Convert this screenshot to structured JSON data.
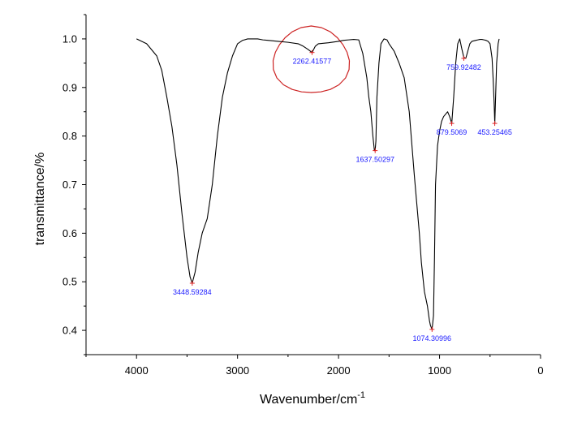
{
  "chart_data": {
    "type": "line",
    "title": "",
    "xlabel": "Wavenumber/cm",
    "xlabel_superscript": "-1",
    "ylabel": "transmittance/%",
    "xlim": [
      4500,
      0
    ],
    "ylim": [
      0.35,
      1.05
    ],
    "x_ticks": [
      "4000",
      "3000",
      "2000",
      "1000",
      "0"
    ],
    "y_ticks": [
      "0.4",
      "0.5",
      "0.6",
      "0.7",
      "0.8",
      "0.9",
      "1.0"
    ],
    "grid": false,
    "series": [
      {
        "color": "#000000",
        "x": [
          4000,
          3900,
          3800,
          3750,
          3700,
          3650,
          3600,
          3550,
          3500,
          3470,
          3449,
          3420,
          3390,
          3350,
          3300,
          3250,
          3200,
          3150,
          3100,
          3050,
          3000,
          2950,
          2900,
          2850,
          2800,
          2750,
          2700,
          2600,
          2500,
          2400,
          2350,
          2300,
          2262,
          2230,
          2200,
          2100,
          2000,
          1950,
          1900,
          1850,
          1800,
          1760,
          1720,
          1700,
          1680,
          1660,
          1645,
          1638,
          1630,
          1620,
          1600,
          1580,
          1550,
          1520,
          1500,
          1450,
          1400,
          1350,
          1300,
          1250,
          1200,
          1180,
          1160,
          1150,
          1140,
          1120,
          1100,
          1090,
          1074,
          1060,
          1050,
          1040,
          1020,
          1000,
          980,
          960,
          940,
          920,
          900,
          879,
          860,
          840,
          820,
          800,
          780,
          760,
          740,
          720,
          700,
          680,
          660,
          640,
          620,
          600,
          580,
          560,
          540,
          520,
          500,
          480,
          470,
          460,
          453,
          445,
          435,
          420,
          410
        ],
        "y": [
          1.0,
          0.99,
          0.965,
          0.935,
          0.88,
          0.82,
          0.74,
          0.64,
          0.55,
          0.51,
          0.497,
          0.52,
          0.56,
          0.6,
          0.63,
          0.7,
          0.8,
          0.88,
          0.93,
          0.965,
          0.99,
          0.997,
          1.0,
          1.0,
          1.0,
          0.998,
          0.997,
          0.995,
          0.993,
          0.99,
          0.985,
          0.978,
          0.972,
          0.985,
          0.99,
          0.992,
          0.995,
          0.997,
          0.998,
          0.999,
          0.998,
          0.97,
          0.92,
          0.88,
          0.85,
          0.8,
          0.77,
          0.77,
          0.79,
          0.88,
          0.95,
          0.99,
          1.0,
          0.998,
          0.99,
          0.975,
          0.95,
          0.92,
          0.85,
          0.72,
          0.6,
          0.54,
          0.5,
          0.48,
          0.47,
          0.45,
          0.42,
          0.41,
          0.402,
          0.43,
          0.55,
          0.7,
          0.78,
          0.81,
          0.83,
          0.84,
          0.845,
          0.85,
          0.84,
          0.826,
          0.88,
          0.95,
          0.99,
          1.0,
          0.98,
          0.962,
          0.96,
          0.975,
          0.99,
          0.995,
          0.996,
          0.997,
          0.998,
          0.999,
          0.999,
          0.998,
          0.997,
          0.995,
          0.99,
          0.96,
          0.92,
          0.87,
          0.826,
          0.88,
          0.95,
          0.99,
          1.0
        ]
      }
    ],
    "annotations": [
      {
        "x": 3448.59284,
        "y": 0.497,
        "text": "3448.59284",
        "position": "below"
      },
      {
        "x": 2262.41577,
        "y": 0.972,
        "text": "2262.41577",
        "position": "below"
      },
      {
        "x": 1637.50297,
        "y": 0.77,
        "text": "1637.50297",
        "position": "below"
      },
      {
        "x": 1074.30996,
        "y": 0.402,
        "text": "1074.30996",
        "position": "below"
      },
      {
        "x": 879.5069,
        "y": 0.826,
        "text": "879.5069",
        "position": "below"
      },
      {
        "x": 759.92482,
        "y": 0.96,
        "text": "759.92482",
        "position": "below"
      },
      {
        "x": 453.25465,
        "y": 0.826,
        "text": "453.25465",
        "position": "below"
      }
    ],
    "highlight": {
      "shape": "hand-drawn circle",
      "color": "#cc2222",
      "around": "2262.41577"
    },
    "colors": {
      "line": "#000000",
      "peak_marker": "#e02020",
      "peak_label": "#1a1aff"
    }
  }
}
